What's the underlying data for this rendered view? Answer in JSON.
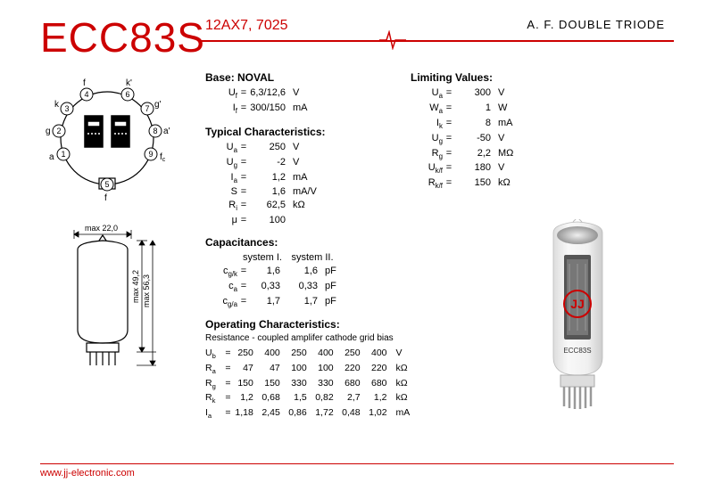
{
  "header": {
    "title": "ECC83S",
    "subtitle": "12AX7, 7025",
    "type": "A. F. DOUBLE TRIODE"
  },
  "pinout": {
    "labels": [
      "a",
      "g",
      "k",
      "f",
      "f",
      "k'",
      "g'",
      "a'",
      "f_c"
    ],
    "numbers": [
      "1",
      "2",
      "3",
      "4",
      "5",
      "6",
      "7",
      "8",
      "9"
    ]
  },
  "outline": {
    "width_label": "max 22,0",
    "height1": "max 49,2",
    "height2": "max 56,3"
  },
  "base": {
    "title": "Base: NOVAL",
    "rows": [
      {
        "sym": "U_f",
        "val": "6,3/12,6",
        "unit": "V"
      },
      {
        "sym": "I_f",
        "val": "300/150",
        "unit": "mA"
      }
    ]
  },
  "typical": {
    "title": "Typical Characteristics:",
    "rows": [
      {
        "sym": "U_a",
        "val": "250",
        "unit": "V"
      },
      {
        "sym": "U_g",
        "val": "-2",
        "unit": "V"
      },
      {
        "sym": "I_a",
        "val": "1,2",
        "unit": "mA"
      },
      {
        "sym": "S",
        "val": "1,6",
        "unit": "mA/V"
      },
      {
        "sym": "R_i",
        "val": "62,5",
        "unit": "kΩ"
      },
      {
        "sym": "μ",
        "val": "100",
        "unit": ""
      }
    ]
  },
  "limiting": {
    "title": "Limiting Values:",
    "rows": [
      {
        "sym": "U_a",
        "val": "300",
        "unit": "V"
      },
      {
        "sym": "W_a",
        "val": "1",
        "unit": "W"
      },
      {
        "sym": "I_k",
        "val": "8",
        "unit": "mA"
      },
      {
        "sym": "U_g",
        "val": "-50",
        "unit": "V"
      },
      {
        "sym": "R_g",
        "val": "2,2",
        "unit": "MΩ"
      },
      {
        "sym": "U_k/f",
        "val": "180",
        "unit": "V"
      },
      {
        "sym": "R_k/f",
        "val": "150",
        "unit": "kΩ"
      }
    ]
  },
  "capacitances": {
    "title": "Capacitances:",
    "head1": "system I.",
    "head2": "system II.",
    "rows": [
      {
        "sym": "c_g/k",
        "v1": "1,6",
        "v2": "1,6",
        "unit": "pF"
      },
      {
        "sym": "c_a",
        "v1": "0,33",
        "v2": "0,33",
        "unit": "pF"
      },
      {
        "sym": "c_g/a",
        "v1": "1,7",
        "v2": "1,7",
        "unit": "pF"
      }
    ]
  },
  "operating": {
    "title": "Operating Characteristics:",
    "subtitle": "Resistance - coupled amplifer cathode grid bias",
    "rows": [
      {
        "sym": "U_b",
        "vals": [
          "250",
          "400",
          "250",
          "400",
          "250",
          "400"
        ],
        "unit": "V"
      },
      {
        "sym": "R_a",
        "vals": [
          "47",
          "47",
          "100",
          "100",
          "220",
          "220"
        ],
        "unit": "kΩ"
      },
      {
        "sym": "R_g",
        "vals": [
          "150",
          "150",
          "330",
          "330",
          "680",
          "680"
        ],
        "unit": "kΩ"
      },
      {
        "sym": "R_k",
        "vals": [
          "1,2",
          "0,68",
          "1,5",
          "0,82",
          "2,7",
          "1,2"
        ],
        "unit": "kΩ"
      },
      {
        "sym": "I_a",
        "vals": [
          "1,18",
          "2,45",
          "0,86",
          "1,72",
          "0,48",
          "1,02"
        ],
        "unit": "mA"
      }
    ]
  },
  "product_label": "ECC83S",
  "footer": {
    "url": "www.jj-electronic.com"
  },
  "colors": {
    "brand_red": "#cc0000",
    "text": "#000000",
    "bg": "#ffffff"
  }
}
